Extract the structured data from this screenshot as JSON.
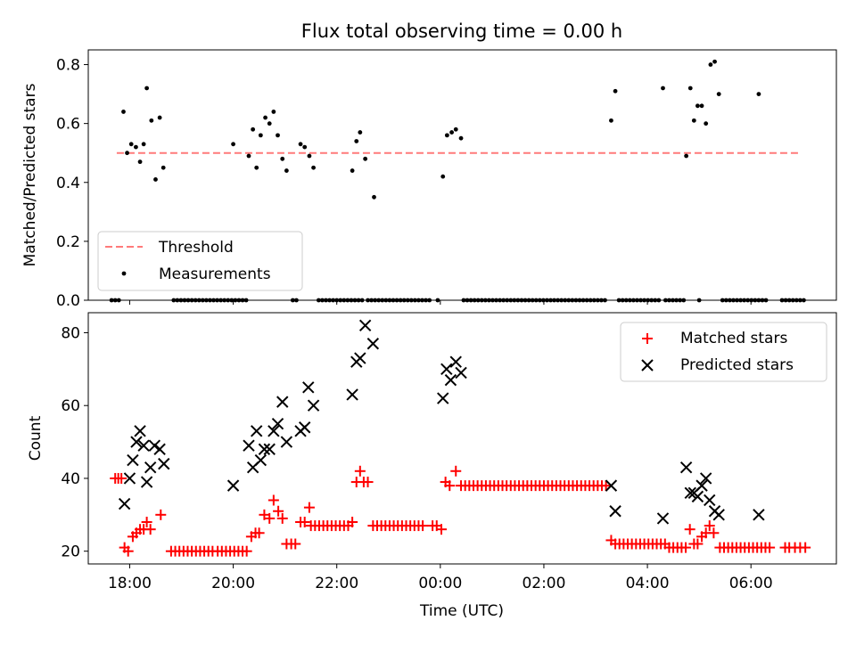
{
  "chart_data": {
    "title": "Flux total observing time = 0.00 h",
    "xlabel": "Time (UTC)",
    "x_ticks": [
      "18:00",
      "20:00",
      "22:00",
      "00:00",
      "02:00",
      "04:00",
      "06:00"
    ],
    "x_ticks_hours": [
      18,
      20,
      22,
      24,
      26,
      28,
      30
    ],
    "xlim_hours": [
      17.2,
      31.65
    ],
    "top": {
      "type": "scatter",
      "ylabel": "Matched/Predicted stars",
      "ylim": [
        0,
        0.85
      ],
      "yticks": [
        0.0,
        0.2,
        0.4,
        0.6,
        0.8
      ],
      "threshold": {
        "label": "Threshold",
        "y": 0.5,
        "x_start_hours": 17.75,
        "x_end_hours": 30.95,
        "color": "#ff7a7a"
      },
      "measurements_label": "Measurements",
      "legend_position": "lower-left",
      "measurements": [
        [
          17.88,
          0.64
        ],
        [
          17.95,
          0.5
        ],
        [
          18.03,
          0.53
        ],
        [
          18.12,
          0.52
        ],
        [
          18.2,
          0.47
        ],
        [
          18.27,
          0.53
        ],
        [
          18.33,
          0.72
        ],
        [
          18.42,
          0.61
        ],
        [
          18.5,
          0.41
        ],
        [
          18.58,
          0.62
        ],
        [
          18.65,
          0.45
        ],
        [
          20.0,
          0.53
        ],
        [
          20.3,
          0.49
        ],
        [
          20.38,
          0.58
        ],
        [
          20.45,
          0.45
        ],
        [
          20.53,
          0.56
        ],
        [
          20.62,
          0.62
        ],
        [
          20.7,
          0.6
        ],
        [
          20.78,
          0.64
        ],
        [
          20.86,
          0.56
        ],
        [
          20.95,
          0.48
        ],
        [
          21.03,
          0.44
        ],
        [
          21.3,
          0.53
        ],
        [
          21.38,
          0.52
        ],
        [
          21.47,
          0.49
        ],
        [
          21.55,
          0.45
        ],
        [
          22.3,
          0.44
        ],
        [
          22.38,
          0.54
        ],
        [
          22.45,
          0.57
        ],
        [
          22.55,
          0.48
        ],
        [
          22.72,
          0.35
        ],
        [
          24.05,
          0.42
        ],
        [
          24.13,
          0.56
        ],
        [
          24.22,
          0.57
        ],
        [
          24.3,
          0.58
        ],
        [
          24.4,
          0.55
        ],
        [
          27.3,
          0.61
        ],
        [
          27.38,
          0.71
        ],
        [
          28.3,
          0.72
        ],
        [
          28.75,
          0.49
        ],
        [
          28.83,
          0.72
        ],
        [
          28.9,
          0.61
        ],
        [
          28.97,
          0.66
        ],
        [
          29.05,
          0.66
        ],
        [
          29.13,
          0.6
        ],
        [
          29.22,
          0.8
        ],
        [
          29.3,
          0.81
        ],
        [
          29.38,
          0.7
        ],
        [
          30.15,
          0.7
        ]
      ],
      "zero_groups_hours": [
        [
          17.65,
          17.85
        ],
        [
          18.85,
          19.85
        ],
        [
          19.9,
          20.25
        ],
        [
          21.15,
          21.25
        ],
        [
          21.65,
          22.55
        ],
        [
          22.6,
          23.85
        ],
        [
          23.95,
          24.0
        ],
        [
          24.45,
          27.2
        ],
        [
          27.45,
          28.25
        ],
        [
          28.35,
          28.7
        ],
        [
          29.0,
          29.05
        ],
        [
          29.45,
          30.35
        ],
        [
          30.6,
          31.05
        ]
      ]
    },
    "bottom": {
      "type": "scatter",
      "ylabel": "Count",
      "ylim": [
        16.5,
        85.5
      ],
      "yticks": [
        20,
        40,
        60,
        80
      ],
      "legend_position": "upper-right",
      "series": [
        {
          "name": "Matched stars",
          "marker": "plus",
          "color": "#ff0000",
          "points": [
            [
              17.72,
              40
            ],
            [
              17.78,
              40
            ],
            [
              17.84,
              40
            ],
            [
              17.9,
              21
            ],
            [
              17.97,
              20
            ],
            [
              18.06,
              24
            ],
            [
              18.13,
              25
            ],
            [
              18.2,
              26
            ],
            [
              18.27,
              26
            ],
            [
              18.33,
              28
            ],
            [
              18.4,
              26
            ],
            [
              18.6,
              30
            ],
            [
              18.8,
              20
            ],
            [
              18.88,
              20
            ],
            [
              18.96,
              20
            ],
            [
              19.04,
              20
            ],
            [
              19.12,
              20
            ],
            [
              19.2,
              20
            ],
            [
              19.28,
              20
            ],
            [
              19.36,
              20
            ],
            [
              19.44,
              20
            ],
            [
              19.52,
              20
            ],
            [
              19.6,
              20
            ],
            [
              19.7,
              20
            ],
            [
              19.78,
              20
            ],
            [
              19.86,
              20
            ],
            [
              19.94,
              20
            ],
            [
              20.02,
              20
            ],
            [
              20.1,
              20
            ],
            [
              20.18,
              20
            ],
            [
              20.26,
              20
            ],
            [
              20.35,
              24
            ],
            [
              20.43,
              25
            ],
            [
              20.5,
              25
            ],
            [
              20.6,
              30
            ],
            [
              20.7,
              29
            ],
            [
              20.78,
              34
            ],
            [
              20.87,
              31
            ],
            [
              20.95,
              29
            ],
            [
              21.03,
              22
            ],
            [
              21.12,
              22
            ],
            [
              21.2,
              22
            ],
            [
              21.3,
              28
            ],
            [
              21.38,
              28
            ],
            [
              21.47,
              32
            ],
            [
              21.5,
              27
            ],
            [
              21.58,
              27
            ],
            [
              21.66,
              27
            ],
            [
              21.74,
              27
            ],
            [
              21.82,
              27
            ],
            [
              21.9,
              27
            ],
            [
              21.98,
              27
            ],
            [
              22.06,
              27
            ],
            [
              22.14,
              27
            ],
            [
              22.22,
              27
            ],
            [
              22.3,
              28
            ],
            [
              22.38,
              39
            ],
            [
              22.45,
              42
            ],
            [
              22.52,
              39
            ],
            [
              22.6,
              39
            ],
            [
              22.7,
              27
            ],
            [
              22.78,
              27
            ],
            [
              22.86,
              27
            ],
            [
              22.94,
              27
            ],
            [
              23.02,
              27
            ],
            [
              23.1,
              27
            ],
            [
              23.18,
              27
            ],
            [
              23.26,
              27
            ],
            [
              23.34,
              27
            ],
            [
              23.42,
              27
            ],
            [
              23.5,
              27
            ],
            [
              23.58,
              27
            ],
            [
              23.66,
              27
            ],
            [
              23.85,
              27
            ],
            [
              23.93,
              27
            ],
            [
              24.02,
              26
            ],
            [
              24.1,
              39
            ],
            [
              24.18,
              38
            ],
            [
              24.3,
              42
            ],
            [
              24.4,
              38
            ],
            [
              24.48,
              38
            ],
            [
              24.56,
              38
            ],
            [
              24.64,
              38
            ],
            [
              24.72,
              38
            ],
            [
              24.8,
              38
            ],
            [
              24.88,
              38
            ],
            [
              24.96,
              38
            ],
            [
              25.04,
              38
            ],
            [
              25.12,
              38
            ],
            [
              25.2,
              38
            ],
            [
              25.28,
              38
            ],
            [
              25.36,
              38
            ],
            [
              25.44,
              38
            ],
            [
              25.52,
              38
            ],
            [
              25.6,
              38
            ],
            [
              25.68,
              38
            ],
            [
              25.76,
              38
            ],
            [
              25.84,
              38
            ],
            [
              25.92,
              38
            ],
            [
              26.0,
              38
            ],
            [
              26.08,
              38
            ],
            [
              26.16,
              38
            ],
            [
              26.24,
              38
            ],
            [
              26.32,
              38
            ],
            [
              26.4,
              38
            ],
            [
              26.48,
              38
            ],
            [
              26.56,
              38
            ],
            [
              26.64,
              38
            ],
            [
              26.72,
              38
            ],
            [
              26.8,
              38
            ],
            [
              26.88,
              38
            ],
            [
              26.96,
              38
            ],
            [
              27.04,
              38
            ],
            [
              27.12,
              38
            ],
            [
              27.2,
              38
            ],
            [
              27.3,
              23
            ],
            [
              27.38,
              22
            ],
            [
              27.46,
              22
            ],
            [
              27.54,
              22
            ],
            [
              27.62,
              22
            ],
            [
              27.7,
              22
            ],
            [
              27.78,
              22
            ],
            [
              27.86,
              22
            ],
            [
              27.94,
              22
            ],
            [
              28.02,
              22
            ],
            [
              28.1,
              22
            ],
            [
              28.18,
              22
            ],
            [
              28.26,
              22
            ],
            [
              28.34,
              22
            ],
            [
              28.42,
              21
            ],
            [
              28.5,
              21
            ],
            [
              28.58,
              21
            ],
            [
              28.66,
              21
            ],
            [
              28.74,
              21
            ],
            [
              28.82,
              26
            ],
            [
              28.9,
              22
            ],
            [
              28.97,
              22
            ],
            [
              29.05,
              24
            ],
            [
              29.13,
              25
            ],
            [
              29.2,
              27
            ],
            [
              29.28,
              25
            ],
            [
              29.4,
              21
            ],
            [
              29.48,
              21
            ],
            [
              29.56,
              21
            ],
            [
              29.64,
              21
            ],
            [
              29.72,
              21
            ],
            [
              29.8,
              21
            ],
            [
              29.88,
              21
            ],
            [
              29.96,
              21
            ],
            [
              30.04,
              21
            ],
            [
              30.12,
              21
            ],
            [
              30.2,
              21
            ],
            [
              30.28,
              21
            ],
            [
              30.36,
              21
            ],
            [
              30.66,
              21
            ],
            [
              30.74,
              21
            ],
            [
              30.85,
              21
            ],
            [
              30.95,
              21
            ],
            [
              31.05,
              21
            ]
          ]
        },
        {
          "name": "Predicted stars",
          "marker": "x",
          "color": "#000000",
          "points": [
            [
              17.9,
              33
            ],
            [
              18.0,
              40
            ],
            [
              18.06,
              45
            ],
            [
              18.13,
              50
            ],
            [
              18.2,
              53
            ],
            [
              18.27,
              49
            ],
            [
              18.33,
              39
            ],
            [
              18.4,
              43
            ],
            [
              18.48,
              49
            ],
            [
              18.58,
              48
            ],
            [
              18.66,
              44
            ],
            [
              20.0,
              38
            ],
            [
              20.3,
              49
            ],
            [
              20.38,
              43
            ],
            [
              20.45,
              53
            ],
            [
              20.53,
              45
            ],
            [
              20.6,
              48
            ],
            [
              20.7,
              48
            ],
            [
              20.78,
              53
            ],
            [
              20.86,
              55
            ],
            [
              20.95,
              61
            ],
            [
              21.03,
              50
            ],
            [
              21.3,
              53
            ],
            [
              21.38,
              54
            ],
            [
              21.45,
              65
            ],
            [
              21.55,
              60
            ],
            [
              22.3,
              63
            ],
            [
              22.38,
              72
            ],
            [
              22.45,
              73
            ],
            [
              22.55,
              82
            ],
            [
              22.7,
              77
            ],
            [
              24.05,
              62
            ],
            [
              24.12,
              70
            ],
            [
              24.2,
              67
            ],
            [
              24.3,
              72
            ],
            [
              24.4,
              69
            ],
            [
              27.3,
              38
            ],
            [
              27.38,
              31
            ],
            [
              28.3,
              29
            ],
            [
              28.75,
              43
            ],
            [
              28.83,
              36
            ],
            [
              28.9,
              36
            ],
            [
              28.97,
              35
            ],
            [
              29.05,
              38
            ],
            [
              29.13,
              40
            ],
            [
              29.2,
              34
            ],
            [
              29.3,
              31
            ],
            [
              29.38,
              30
            ],
            [
              30.15,
              30
            ]
          ]
        }
      ]
    }
  }
}
